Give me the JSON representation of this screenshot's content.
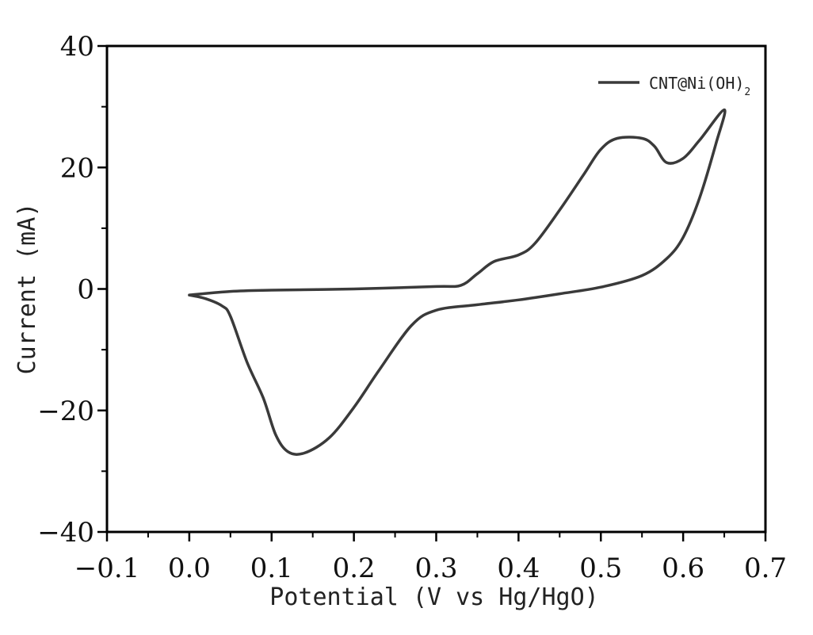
{
  "chart_data": {
    "type": "line",
    "xlabel": "Potential (V vs Hg/HgO)",
    "ylabel": "Current (mA)",
    "xlim": [
      -0.1,
      0.7
    ],
    "ylim": [
      -40,
      40
    ],
    "x_ticks": [
      -0.1,
      0.0,
      0.1,
      0.2,
      0.3,
      0.4,
      0.5,
      0.6,
      0.7
    ],
    "x_tick_labels": [
      "−0.1",
      "0.0",
      "0.1",
      "0.2",
      "0.3",
      "0.4",
      "0.5",
      "0.6",
      "0.7"
    ],
    "y_ticks": [
      -40,
      -20,
      0,
      20,
      40
    ],
    "y_tick_labels": [
      "−40",
      "−20",
      "0",
      "20",
      "40"
    ],
    "grid": false,
    "legend_position": "top-right",
    "colors": {
      "series": "#3a3a3a",
      "axis": "#000000"
    },
    "series": [
      {
        "name": "CNT@Ni(OH)",
        "name_subscript": "2",
        "x": [
          0.0,
          0.05,
          0.1,
          0.2,
          0.3,
          0.33,
          0.35,
          0.37,
          0.4,
          0.42,
          0.45,
          0.48,
          0.5,
          0.52,
          0.55,
          0.565,
          0.58,
          0.6,
          0.62,
          0.65,
          0.64,
          0.62,
          0.6,
          0.58,
          0.55,
          0.5,
          0.45,
          0.4,
          0.35,
          0.3,
          0.27,
          0.23,
          0.2,
          0.17,
          0.14,
          0.12,
          0.105,
          0.09,
          0.07,
          0.05,
          0.04,
          0.02,
          0.0
        ],
        "y": [
          -1.0,
          -0.4,
          -0.2,
          0.0,
          0.4,
          0.6,
          2.5,
          4.5,
          5.6,
          7.5,
          13.0,
          19.0,
          23.0,
          24.8,
          24.8,
          23.5,
          20.8,
          21.5,
          24.5,
          29.5,
          24.0,
          15.0,
          8.5,
          5.0,
          2.2,
          0.3,
          -0.8,
          -1.8,
          -2.6,
          -3.5,
          -6.0,
          -13.5,
          -19.5,
          -24.5,
          -27.0,
          -26.8,
          -24.0,
          -18.0,
          -12.0,
          -4.5,
          -2.8,
          -1.6,
          -1.0
        ]
      }
    ]
  }
}
